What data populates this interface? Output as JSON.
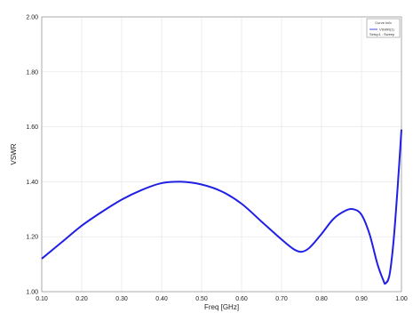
{
  "chart_data": {
    "type": "line",
    "xlabel": "Freq [GHz]",
    "ylabel": "VSWR",
    "xlim": [
      0.1,
      1.0
    ],
    "ylim": [
      1.0,
      2.0
    ],
    "grid": true,
    "legend_position": "top-right",
    "x_ticks": [
      "0.10",
      "0.20",
      "0.30",
      "0.40",
      "0.50",
      "0.60",
      "0.70",
      "0.80",
      "0.90",
      "1.00"
    ],
    "y_ticks": [
      "1.00",
      "1.20",
      "1.40",
      "1.60",
      "1.80",
      "2.00"
    ],
    "series": [
      {
        "color": "#1f1fe6",
        "x": [
          0.1,
          0.15,
          0.2,
          0.25,
          0.3,
          0.35,
          0.4,
          0.45,
          0.5,
          0.55,
          0.6,
          0.65,
          0.7,
          0.73,
          0.75,
          0.77,
          0.8,
          0.83,
          0.86,
          0.88,
          0.9,
          0.92,
          0.94,
          0.955,
          0.96,
          0.97,
          0.98,
          0.99,
          1.0
        ],
        "y": [
          1.12,
          1.18,
          1.24,
          1.29,
          1.335,
          1.37,
          1.395,
          1.4,
          1.39,
          1.365,
          1.32,
          1.255,
          1.19,
          1.155,
          1.145,
          1.16,
          1.21,
          1.265,
          1.295,
          1.3,
          1.28,
          1.21,
          1.1,
          1.04,
          1.03,
          1.06,
          1.18,
          1.37,
          1.59
        ]
      }
    ]
  },
  "legend": {
    "title": "Curve Info",
    "entry": "VSWR(1)",
    "sub": "Setup1 : Sweep"
  }
}
